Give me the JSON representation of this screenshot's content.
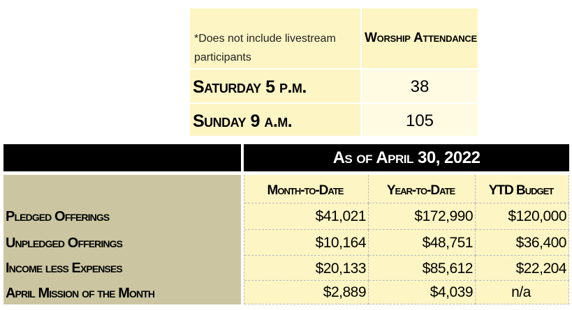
{
  "attendance": {
    "note": "*Does not include livestream participants",
    "header": "Worship Attendance",
    "rows": [
      {
        "label": "Saturday 5 p.m.",
        "value": "38"
      },
      {
        "label": "Sunday 9 a.m.",
        "value": "105"
      }
    ]
  },
  "financial": {
    "title": "As of April 30, 2022",
    "columns": [
      "Month-to-Date",
      "Year-to-Date",
      "YTD Budget"
    ],
    "rows": [
      {
        "label": "Pledged Offerings",
        "values": [
          "$41,021",
          "$172,990",
          "$120,000"
        ]
      },
      {
        "label": "Unpledged Offerings",
        "values": [
          "$10,164",
          "$48,751",
          "$36,400"
        ]
      },
      {
        "label": "Income less Expenses",
        "values": [
          "$20,133",
          "$85,612",
          "$22,204"
        ]
      },
      {
        "label": "April Mission of the Month",
        "values": [
          "$2,889",
          "$4,039",
          "n/a"
        ]
      }
    ]
  }
}
